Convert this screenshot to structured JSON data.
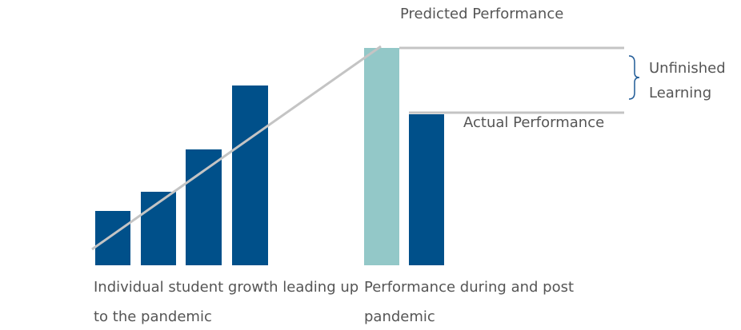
{
  "labels": {
    "predicted": "Predicted Performance",
    "actual": "Actual Performance",
    "unfinished": [
      "Unfinished",
      "Learning"
    ],
    "left_caption": [
      "Individual student growth leading up",
      "to the pandemic"
    ],
    "right_caption": [
      "Performance during and post",
      "pandemic"
    ]
  }
}
